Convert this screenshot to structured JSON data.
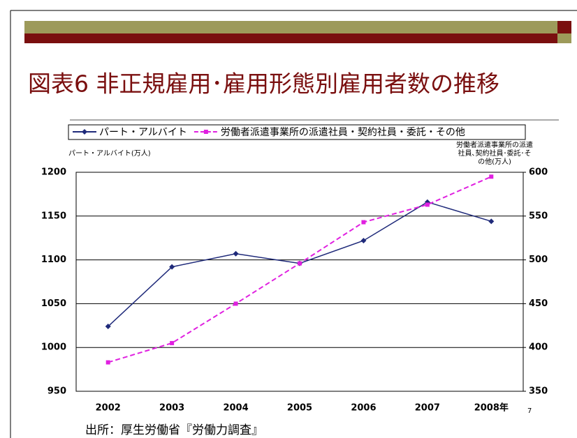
{
  "slide": {
    "title": "図表6 非正規雇用･雇用形態別雇用者数の推移",
    "source": "出所：厚生労働省『労働力調査』",
    "page_number": "7"
  },
  "chart_data": {
    "type": "line",
    "categories": [
      "2002",
      "2003",
      "2004",
      "2005",
      "2006",
      "2007",
      "2008年"
    ],
    "series": [
      {
        "name": "パート・アルバイト",
        "color": "#1f2a7a",
        "values": [
          1024,
          1092,
          1107,
          1096,
          1122,
          1166,
          1144
        ]
      },
      {
        "name": "労働者派遣事業所の派遣社員・契約社員・委託・その他",
        "color": "#e020e0",
        "axis": "y2",
        "values": [
          383,
          405,
          450,
          496,
          543,
          563,
          595
        ]
      }
    ],
    "y_label": "パート・アルバイト(万人)",
    "y2_label": "労働者派遣事業所の派遣社員､契約社員･委託･その他(万人)",
    "ylim": [
      950,
      1200
    ],
    "yticks": [
      950,
      1000,
      1050,
      1100,
      1150,
      1200
    ],
    "y2lim": [
      350,
      600
    ],
    "y2ticks": [
      350,
      400,
      450,
      500,
      550,
      600
    ],
    "grid": true,
    "legend": "top"
  }
}
